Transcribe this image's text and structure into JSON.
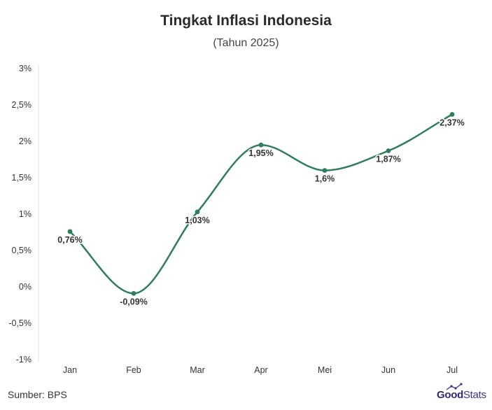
{
  "chart_data": {
    "type": "line",
    "title": "Tingkat Inflasi Indonesia",
    "subtitle": "(Tahun 2025)",
    "categories": [
      "Jan",
      "Feb",
      "Mar",
      "Apr",
      "Mei",
      "Jun",
      "Jul"
    ],
    "series": [
      {
        "values": [
          0.76,
          -0.09,
          1.03,
          1.95,
          1.6,
          1.87,
          2.37
        ],
        "labels": [
          "0,76%",
          "-0,09%",
          "1,03%",
          "1,95%",
          "1,6%",
          "1,87%",
          "2,37%"
        ],
        "color": "#2e7d5b"
      }
    ],
    "ylim": [
      -1,
      3
    ],
    "yticks": [
      3,
      2.5,
      2,
      1.5,
      1,
      0.5,
      0,
      -0.5,
      -1
    ],
    "ytick_labels": [
      "3%",
      "2,5%",
      "2%",
      "1,5%",
      "1%",
      "0,5%",
      "0%",
      "-0,5%",
      "-1%"
    ],
    "xlabel": "",
    "ylabel": "",
    "grid": false,
    "smooth": true
  },
  "footer": {
    "source": "Sumber: BPS",
    "logo_good": "Good",
    "logo_stats": "Stats"
  }
}
